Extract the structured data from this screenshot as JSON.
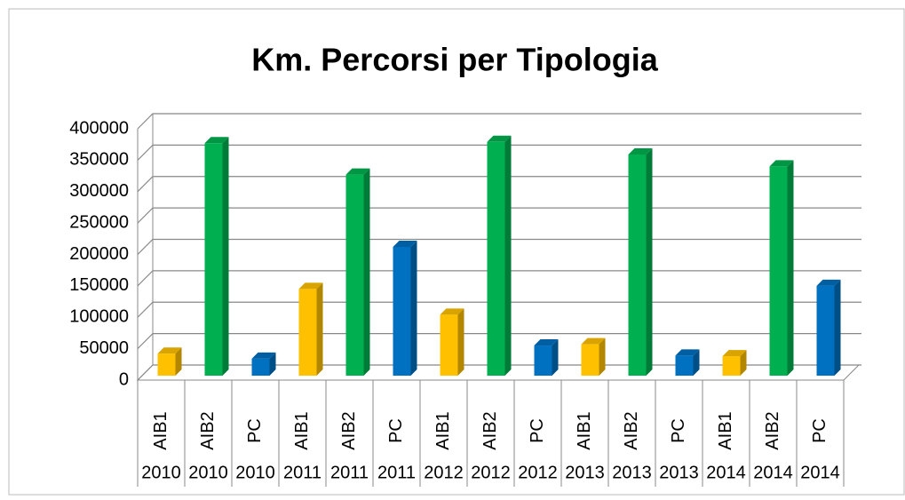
{
  "chart_data": {
    "type": "bar3d",
    "title": "Km. Percorsi  per Tipologia",
    "categories": [
      "AIB1",
      "AIB2",
      "PC",
      "AIB1",
      "AIB2",
      "PC",
      "AIB1",
      "AIB2",
      "PC",
      "AIB1",
      "AIB2",
      "PC",
      "AIB1",
      "AIB2",
      "PC"
    ],
    "groups": [
      "2010",
      "2010",
      "2010",
      "2011",
      "2011",
      "2011",
      "2012",
      "2012",
      "2012",
      "2013",
      "2013",
      "2013",
      "2014",
      "2014",
      "2014"
    ],
    "values": [
      35000,
      370000,
      27000,
      138000,
      320000,
      205000,
      97000,
      372000,
      48000,
      50000,
      352000,
      32000,
      31000,
      333000,
      143000
    ],
    "colors": [
      "#ffc000",
      "#00b050",
      "#0070c0",
      "#ffc000",
      "#00b050",
      "#0070c0",
      "#ffc000",
      "#00b050",
      "#0070c0",
      "#ffc000",
      "#00b050",
      "#0070c0",
      "#ffc000",
      "#00b050",
      "#0070c0"
    ],
    "ylim": [
      0,
      400000
    ],
    "yticks": [
      0,
      50000,
      100000,
      150000,
      200000,
      250000,
      300000,
      350000,
      400000
    ],
    "grid": true
  }
}
